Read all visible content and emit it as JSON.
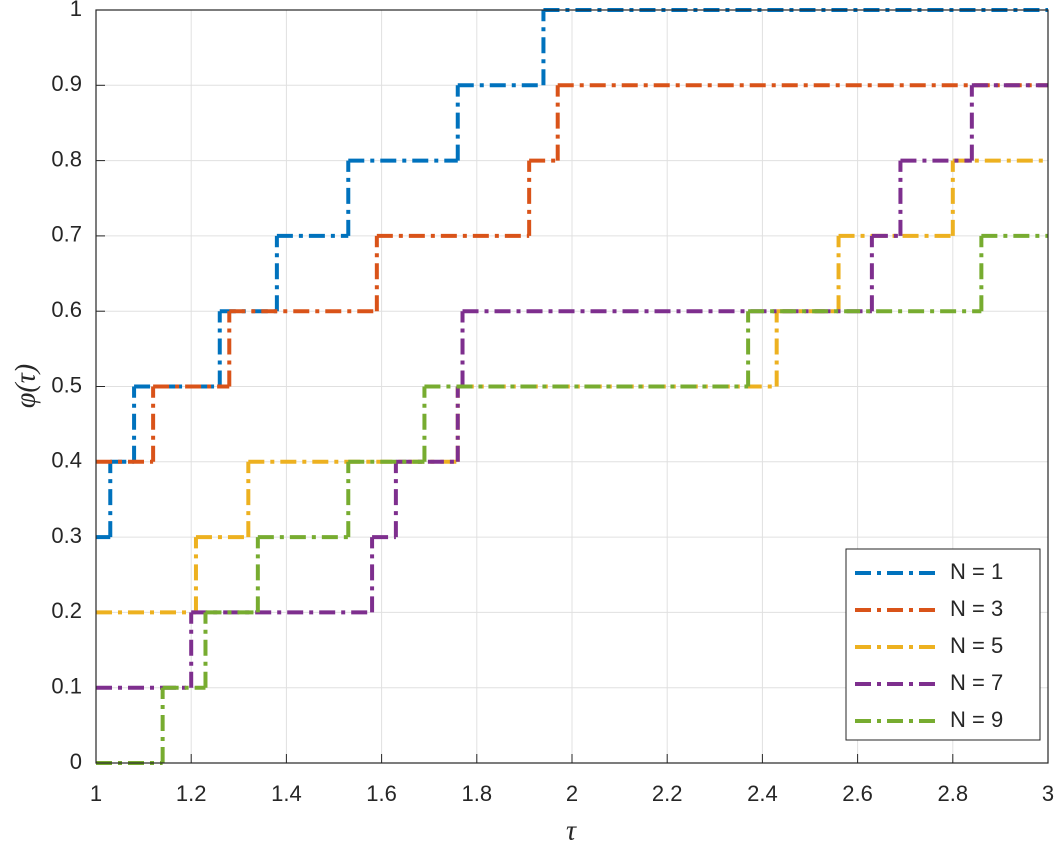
{
  "chart_data": {
    "type": "line",
    "drawstyle": "steps-post",
    "xlabel": "τ",
    "ylabel": "φ(τ)",
    "xlim": [
      1,
      3
    ],
    "ylim": [
      0,
      1
    ],
    "xticks": [
      1,
      1.2,
      1.4,
      1.6,
      1.8,
      2,
      2.2,
      2.4,
      2.6,
      2.8,
      3
    ],
    "yticks": [
      0,
      0.1,
      0.2,
      0.3,
      0.4,
      0.5,
      0.6,
      0.7,
      0.8,
      0.9,
      1
    ],
    "grid": true,
    "legend": "lower right",
    "series": [
      {
        "name": "N = 1",
        "color": "#0072BD",
        "x": [
          1,
          1.03,
          1.08,
          1.26,
          1.38,
          1.53,
          1.76,
          1.94,
          3
        ],
        "values": [
          0.3,
          0.4,
          0.5,
          0.6,
          0.7,
          0.8,
          0.9,
          1,
          1
        ]
      },
      {
        "name": "N = 3",
        "color": "#D95319",
        "x": [
          1,
          1.12,
          1.28,
          1.59,
          1.91,
          1.97,
          3
        ],
        "values": [
          0.4,
          0.5,
          0.6,
          0.7,
          0.8,
          0.9,
          0.9
        ]
      },
      {
        "name": "N = 5",
        "color": "#EDB120",
        "x": [
          1,
          1.21,
          1.32,
          1.76,
          2.43,
          2.56,
          2.8,
          3
        ],
        "values": [
          0.2,
          0.3,
          0.4,
          0.5,
          0.6,
          0.7,
          0.8,
          0.8
        ]
      },
      {
        "name": "N = 7",
        "color": "#7E2F8E",
        "x": [
          1,
          1.2,
          1.58,
          1.63,
          1.76,
          1.77,
          2.63,
          2.69,
          2.84,
          3
        ],
        "values": [
          0.1,
          0.2,
          0.3,
          0.4,
          0.5,
          0.6,
          0.7,
          0.8,
          0.9,
          0.9
        ]
      },
      {
        "name": "N = 9",
        "color": "#77AC30",
        "x": [
          1,
          1.14,
          1.23,
          1.34,
          1.53,
          1.69,
          2.37,
          2.86,
          3
        ],
        "values": [
          0,
          0.1,
          0.2,
          0.3,
          0.4,
          0.5,
          0.6,
          0.7,
          0.7
        ]
      }
    ]
  }
}
